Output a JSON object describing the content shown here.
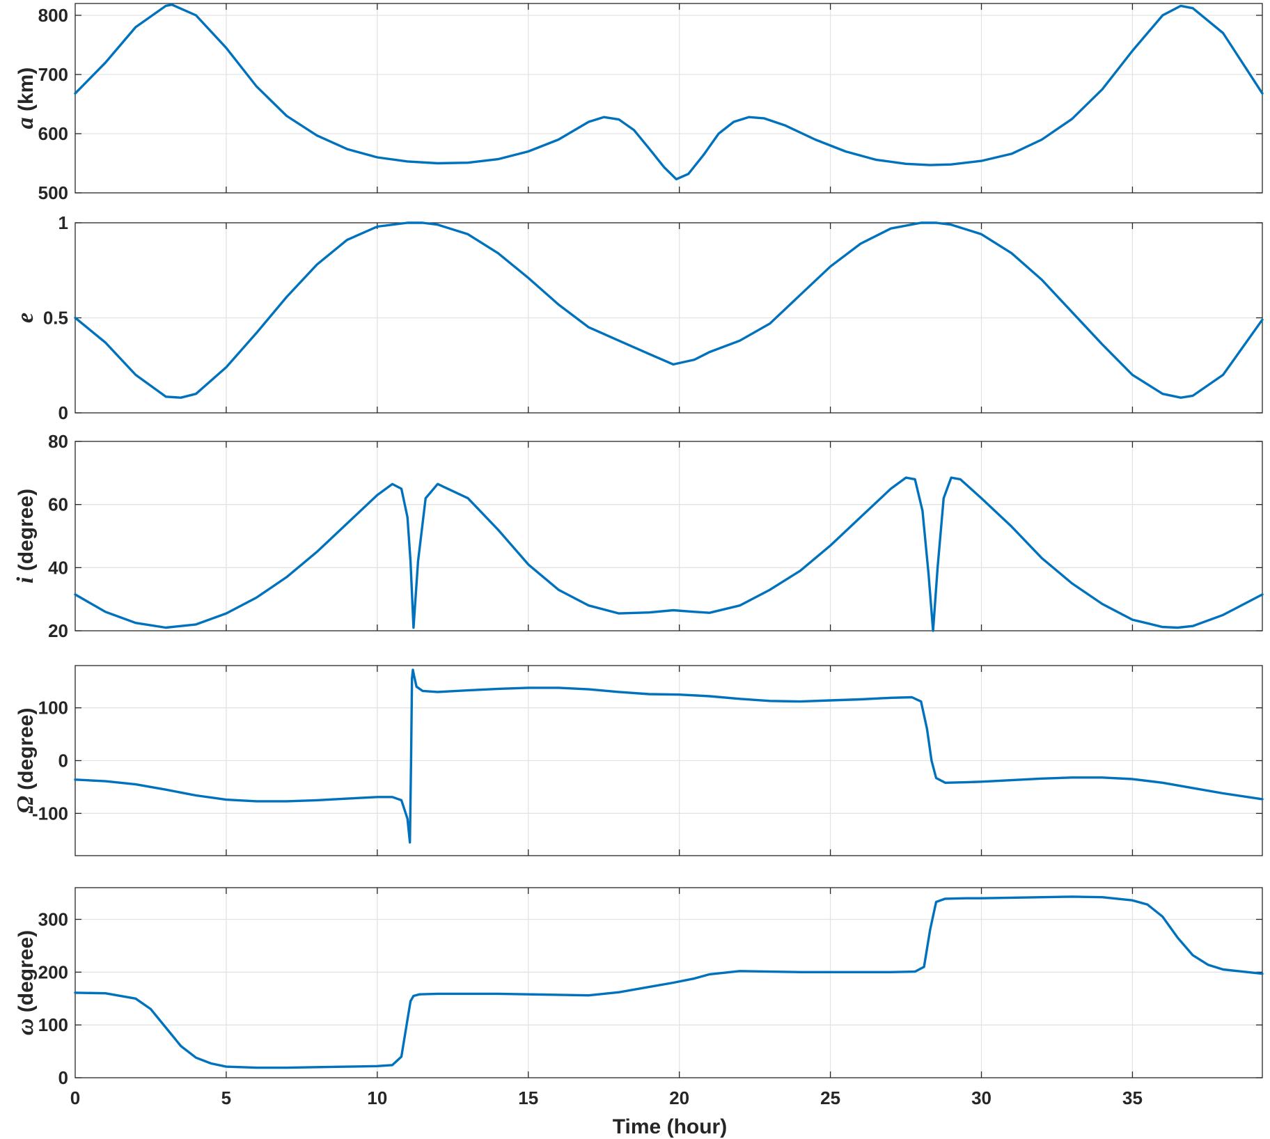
{
  "chart_data": [
    {
      "type": "line",
      "ylabel_symbol": "a",
      "ylabel_unit": " (km)",
      "ylim": [
        500,
        820
      ],
      "yticks": [
        500,
        600,
        700,
        800
      ],
      "ytick_labels": [
        "500",
        "600",
        "700",
        "800"
      ],
      "xlim": [
        0,
        39.3
      ],
      "grid": true,
      "series": [
        {
          "color": "#0072BD",
          "x": [
            0,
            1,
            2,
            3,
            3.2,
            4,
            5,
            6,
            7,
            8,
            9,
            10,
            11,
            12,
            13,
            14,
            15,
            16,
            17,
            17.5,
            18,
            18.5,
            19,
            19.5,
            19.9,
            20.3,
            20.8,
            21.3,
            21.8,
            22.3,
            22.8,
            23.5,
            24.5,
            25.5,
            26.5,
            27.5,
            28.3,
            29,
            30,
            31,
            32,
            33,
            34,
            35,
            36,
            36.6,
            37,
            38,
            39.3
          ],
          "y": [
            668,
            720,
            780,
            816,
            818,
            800,
            745,
            680,
            630,
            597,
            574,
            560,
            553,
            550,
            551,
            557,
            570,
            590,
            620,
            628,
            624,
            606,
            575,
            543,
            523,
            532,
            564,
            600,
            620,
            628,
            626,
            614,
            590,
            570,
            556,
            549,
            547,
            548,
            554,
            566,
            590,
            625,
            675,
            740,
            800,
            816,
            812,
            770,
            668
          ]
        }
      ]
    },
    {
      "type": "line",
      "ylabel_symbol": "e",
      "ylabel_unit": "",
      "ylim": [
        0,
        1
      ],
      "yticks": [
        0,
        0.5,
        1
      ],
      "ytick_labels": [
        "0",
        "0.5",
        "1"
      ],
      "xlim": [
        0,
        39.3
      ],
      "grid": true,
      "series": [
        {
          "color": "#0072BD",
          "x": [
            0,
            1,
            2,
            3,
            3.5,
            4,
            5,
            6,
            7,
            8,
            9,
            10,
            11,
            11.5,
            12,
            13,
            14,
            15,
            16,
            17,
            18,
            19,
            19.8,
            20.5,
            21,
            22,
            23,
            24,
            25,
            26,
            27,
            28,
            28.5,
            29,
            30,
            31,
            32,
            33,
            34,
            35,
            36,
            36.6,
            37,
            38,
            39.3
          ],
          "y": [
            0.5,
            0.37,
            0.2,
            0.085,
            0.08,
            0.1,
            0.24,
            0.42,
            0.61,
            0.78,
            0.91,
            0.98,
            1.0,
            1.0,
            0.99,
            0.94,
            0.84,
            0.71,
            0.57,
            0.45,
            0.38,
            0.31,
            0.255,
            0.28,
            0.32,
            0.38,
            0.47,
            0.62,
            0.77,
            0.89,
            0.97,
            1.0,
            1.0,
            0.99,
            0.94,
            0.84,
            0.7,
            0.53,
            0.36,
            0.2,
            0.1,
            0.08,
            0.09,
            0.2,
            0.49
          ]
        }
      ]
    },
    {
      "type": "line",
      "ylabel_symbol": "i",
      "ylabel_unit": " (degree)",
      "ylim": [
        20,
        80
      ],
      "yticks": [
        20,
        40,
        60,
        80
      ],
      "ytick_labels": [
        "20",
        "40",
        "60",
        "80"
      ],
      "xlim": [
        0,
        39.3
      ],
      "grid": true,
      "series": [
        {
          "color": "#0072BD",
          "x": [
            0,
            1,
            2,
            3,
            4,
            5,
            6,
            7,
            8,
            9,
            10,
            10.5,
            10.8,
            11.0,
            11.1,
            11.2,
            11.35,
            11.6,
            12,
            13,
            14,
            15,
            16,
            17,
            18,
            19,
            19.8,
            20.5,
            21,
            22,
            23,
            24,
            25,
            26,
            27,
            27.5,
            27.8,
            28.05,
            28.25,
            28.4,
            28.55,
            28.75,
            29.0,
            29.3,
            30,
            31,
            32,
            33,
            34,
            35,
            36,
            36.5,
            37,
            38,
            39.3
          ],
          "y": [
            31.5,
            26,
            22.5,
            21,
            22,
            25.5,
            30.5,
            37,
            45,
            54,
            63,
            66.5,
            65,
            56,
            42,
            21,
            42,
            62,
            66.5,
            62,
            52,
            41,
            33,
            28,
            25.5,
            25.8,
            26.5,
            26,
            25.7,
            28,
            33,
            39,
            47,
            56,
            65,
            68.5,
            68,
            58,
            38,
            20,
            40,
            62,
            68.5,
            68,
            62,
            53,
            43,
            35,
            28.5,
            23.5,
            21.2,
            21,
            21.5,
            25,
            31.5
          ]
        }
      ]
    },
    {
      "type": "line",
      "ylabel_symbol": "Ω",
      "ylabel_unit": " (degree)",
      "ylim": [
        -180,
        180
      ],
      "yticks": [
        -100,
        0,
        100
      ],
      "ytick_labels": [
        "-100",
        "0",
        "100"
      ],
      "xlim": [
        0,
        39.3
      ],
      "grid": true,
      "series": [
        {
          "color": "#0072BD",
          "x": [
            0,
            1,
            2,
            3,
            4,
            5,
            6,
            7,
            8,
            9,
            10,
            10.5,
            10.8,
            11.0,
            11.08,
            11.12,
            11.15,
            11.18,
            11.22,
            11.3,
            11.5,
            12,
            13,
            14,
            15,
            16,
            17,
            18,
            19,
            20,
            21,
            22,
            23,
            24,
            25,
            26,
            27,
            27.7,
            28.0,
            28.2,
            28.35,
            28.5,
            28.8,
            29.5,
            30,
            31,
            32,
            33,
            34,
            35,
            36,
            37,
            38,
            39.3
          ],
          "y": [
            -36,
            -39,
            -45,
            -55,
            -66,
            -74,
            -77,
            -77,
            -75,
            -72,
            -69,
            -69,
            -75,
            -110,
            -155,
            0,
            155,
            172,
            160,
            140,
            132,
            130,
            133,
            136,
            138,
            138,
            135,
            130,
            126,
            125,
            122,
            117,
            113,
            112,
            114,
            116,
            119,
            120,
            112,
            60,
            0,
            -33,
            -42,
            -41,
            -40,
            -37,
            -34,
            -32,
            -32,
            -35,
            -42,
            -52,
            -62,
            -73
          ]
        }
      ]
    },
    {
      "type": "line",
      "ylabel_symbol": "ω",
      "ylabel_unit": " (degree)",
      "ylim": [
        0,
        360
      ],
      "yticks": [
        0,
        100,
        200,
        300
      ],
      "ytick_labels": [
        "0",
        "100",
        "200",
        "300"
      ],
      "xlim": [
        0,
        39.3
      ],
      "grid": true,
      "xticks": [
        0,
        5,
        10,
        15,
        20,
        25,
        30,
        35
      ],
      "xtick_labels": [
        "0",
        "5",
        "10",
        "15",
        "20",
        "25",
        "30",
        "35"
      ],
      "xlabel": "Time (hour)",
      "series": [
        {
          "color": "#0072BD",
          "x": [
            0,
            1,
            2,
            2.5,
            3,
            3.5,
            4,
            4.5,
            5,
            6,
            7,
            8,
            9,
            10,
            10.5,
            10.8,
            11.0,
            11.1,
            11.2,
            11.4,
            12,
            13,
            14,
            15,
            16,
            17,
            18,
            19,
            19.8,
            20.5,
            21,
            22,
            23,
            24,
            25,
            26,
            27,
            27.8,
            28.1,
            28.3,
            28.5,
            28.8,
            29.5,
            30,
            31,
            32,
            33,
            34,
            35,
            35.5,
            36,
            36.5,
            37,
            37.5,
            38,
            39.3
          ],
          "y": [
            161,
            160,
            150,
            130,
            95,
            60,
            38,
            27,
            21,
            19,
            19,
            20,
            21,
            22,
            24,
            40,
            110,
            145,
            155,
            158,
            159,
            159,
            159,
            158,
            157,
            156,
            162,
            172,
            180,
            188,
            196,
            202,
            201,
            200,
            200,
            200,
            200,
            201,
            210,
            280,
            333,
            339,
            340,
            340,
            341,
            342,
            343,
            342,
            336,
            328,
            305,
            265,
            232,
            214,
            205,
            197
          ]
        }
      ]
    }
  ]
}
